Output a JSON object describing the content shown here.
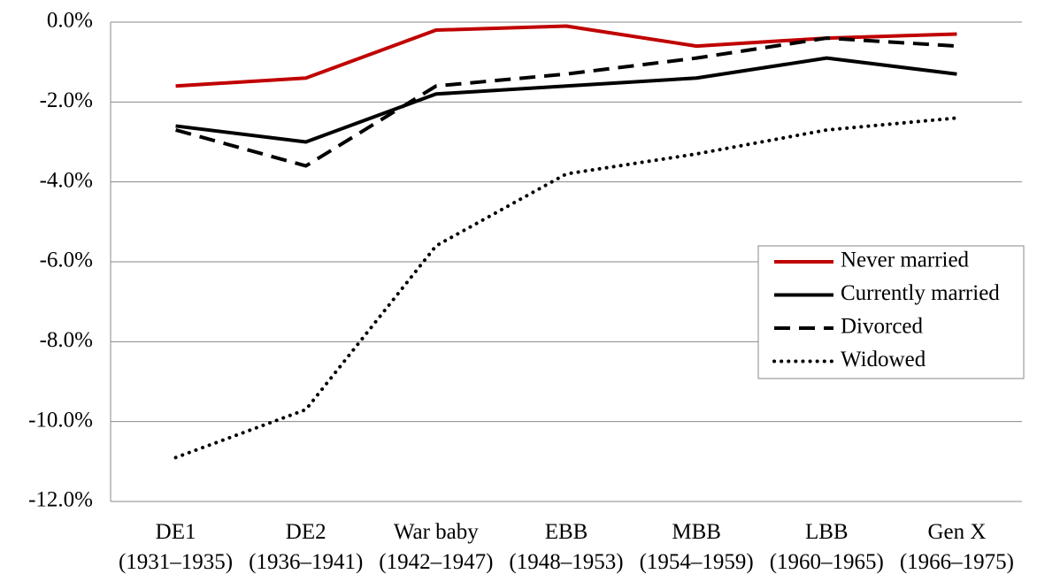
{
  "chart_data": {
    "type": "line",
    "categories": [
      "DE1\n(1931–1935)",
      "DE2\n(1936–1941)",
      "War baby\n(1942–1947)",
      "EBB\n(1948–1953)",
      "MBB\n(1954–1959)",
      "LBB\n(1960–1965)",
      "Gen X\n(1966–1975)"
    ],
    "series": [
      {
        "name": "Never married",
        "color": "#c00000",
        "dash": "solid",
        "values": [
          -1.6,
          -1.4,
          -0.2,
          -0.1,
          -0.6,
          -0.4,
          -0.3
        ]
      },
      {
        "name": "Currently married",
        "color": "#000000",
        "dash": "solid",
        "values": [
          -2.6,
          -3.0,
          -1.8,
          -1.6,
          -1.4,
          -0.9,
          -1.3
        ]
      },
      {
        "name": "Divorced",
        "color": "#000000",
        "dash": "dashed",
        "values": [
          -2.7,
          -3.6,
          -1.6,
          -1.3,
          -0.9,
          -0.4,
          -0.6
        ]
      },
      {
        "name": "Widowed",
        "color": "#000000",
        "dash": "dotted",
        "values": [
          -10.9,
          -9.7,
          -5.6,
          -3.8,
          -3.3,
          -2.7,
          -2.4
        ]
      }
    ],
    "ylim": [
      -12,
      0
    ],
    "yticks": [
      {
        "value": 0,
        "label": "0.0%"
      },
      {
        "value": -2,
        "label": "-2.0%"
      },
      {
        "value": -4,
        "label": "-4.0%"
      },
      {
        "value": -6,
        "label": "-6.0%"
      },
      {
        "value": -8,
        "label": "-8.0%"
      },
      {
        "value": -10,
        "label": "-10.0%"
      },
      {
        "value": -12,
        "label": "-12.0%"
      }
    ],
    "grid": true,
    "legend": "right"
  }
}
